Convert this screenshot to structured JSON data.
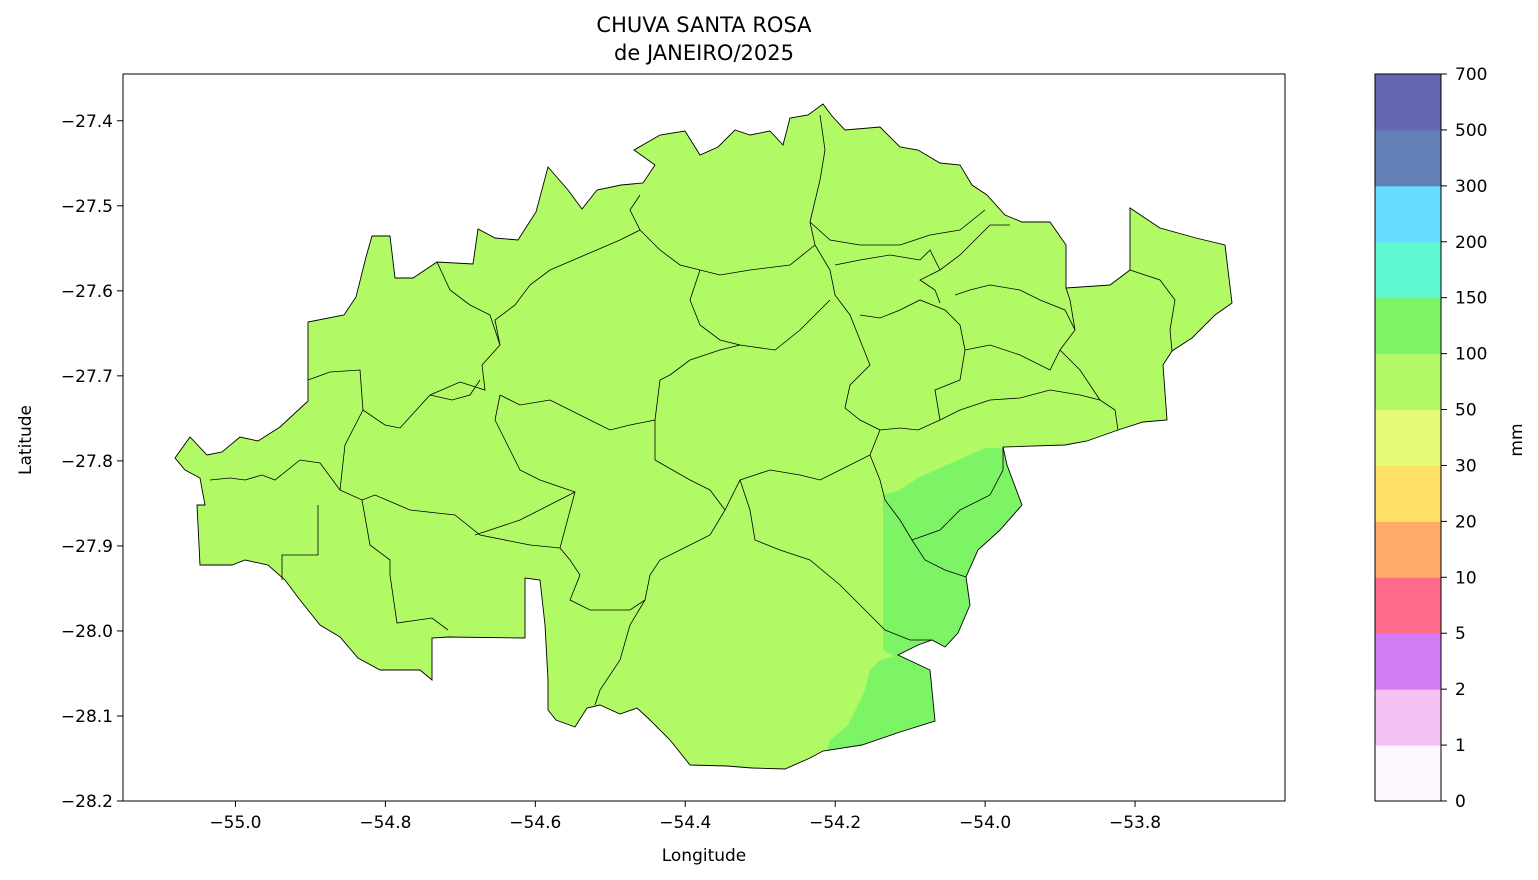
{
  "title": {
    "line1": "CHUVA SANTA ROSA",
    "line2": "de JANEIRO/2025"
  },
  "axes": {
    "xlabel": "Longitude",
    "ylabel": "Latitude",
    "xticks": [
      "−55.0",
      "−54.8",
      "−54.6",
      "−54.4",
      "−54.2",
      "−54.0",
      "−53.8"
    ],
    "yticks": [
      "−27.4",
      "−27.5",
      "−27.6",
      "−27.7",
      "−27.8",
      "−27.9",
      "−28.0",
      "−28.1",
      "−28.2"
    ]
  },
  "chart_data": {
    "type": "heatmap",
    "xlim": [
      -55.15,
      -53.6
    ],
    "ylim": [
      -28.2,
      -27.345
    ],
    "grid": false,
    "colorbar": {
      "label": "mm",
      "ticks": [
        "0",
        "1",
        "2",
        "5",
        "10",
        "20",
        "30",
        "50",
        "100",
        "150",
        "200",
        "300",
        "500",
        "700"
      ],
      "colors": [
        "#fdf6fc",
        "#f3c1f2",
        "#d27bf5",
        "#ff6b88",
        "#ffaa66",
        "#ffe066",
        "#e4fa78",
        "#b2f966",
        "#7cf466",
        "#5ff8d3",
        "#66ddff",
        "#6480b8",
        "#6666b2"
      ]
    },
    "regions": [
      {
        "class": "50-100 mm",
        "color": "#b2f966"
      },
      {
        "class": "100-150 mm",
        "color": "#7cf466"
      }
    ]
  }
}
